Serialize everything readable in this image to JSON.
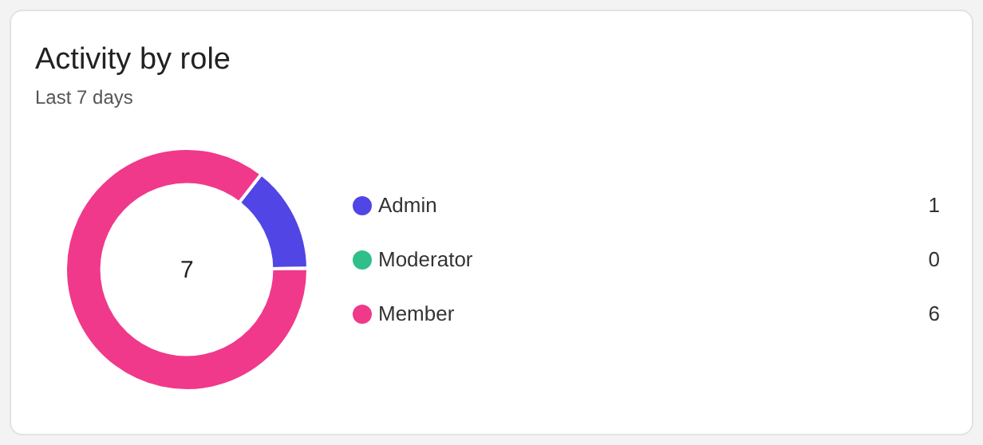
{
  "chart_data": {
    "type": "donut",
    "title": "Activity by role",
    "subtitle": "Last 7 days",
    "categories": [
      "Admin",
      "Moderator",
      "Member"
    ],
    "values": [
      1,
      0,
      6
    ],
    "colors": [
      "#5145e5",
      "#2fbf8a",
      "#f0398b"
    ],
    "annotations": [
      "7"
    ],
    "value_labels": [
      "1",
      "0",
      "6"
    ],
    "legend": "right"
  }
}
